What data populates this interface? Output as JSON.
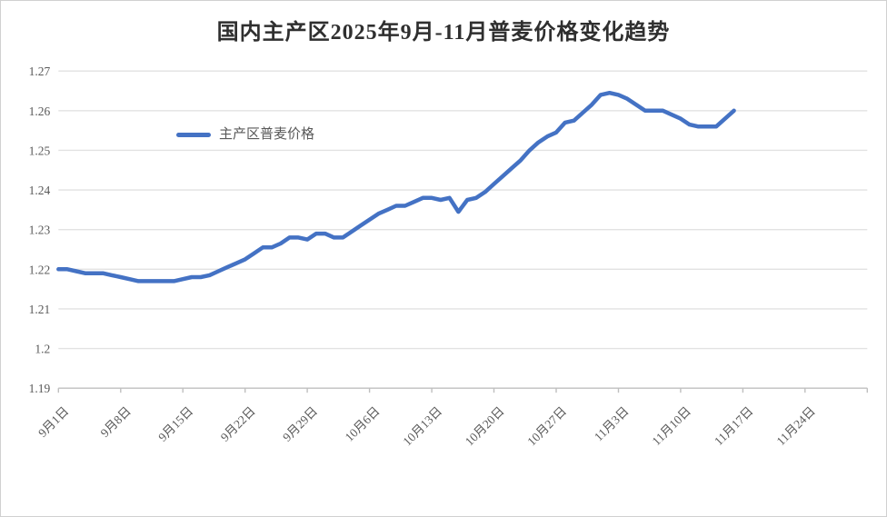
{
  "chart_data": {
    "type": "line",
    "title": "国内主产区2025年9月-11月普麦价格变化趋势",
    "xlabel": "",
    "ylabel": "",
    "ylim": [
      1.19,
      1.27
    ],
    "y_tick_labels": [
      "1.27",
      "1.26",
      "1.25",
      "1.24",
      "1.23",
      "1.22",
      "1.21",
      "1.2",
      "1.19"
    ],
    "x_tick_labels": [
      "9月1日",
      "9月8日",
      "9月15日",
      "9月22日",
      "9月29日",
      "10月6日",
      "10月13日",
      "10月20日",
      "10月27日",
      "11月3日",
      "11月10日",
      "11月17日",
      "11月24日"
    ],
    "x_axis_span_days": 91,
    "x_tick_interval_days": 7,
    "grid": "horizontal",
    "legend_position": "inside-top-left",
    "colors": {
      "line": "#4472C4",
      "gridline": "#e2e2e2",
      "axis": "#bfbfbf",
      "tick_label": "#595959",
      "title": "#2f2f2f"
    },
    "series": [
      {
        "name": "主产区普麦价格",
        "color": "#4472C4",
        "dates": [
          "9月1日",
          "9月2日",
          "9月3日",
          "9月4日",
          "9月5日",
          "9月6日",
          "9月7日",
          "9月8日",
          "9月9日",
          "9月10日",
          "9月11日",
          "9月12日",
          "9月13日",
          "9月14日",
          "9月15日",
          "9月16日",
          "9月17日",
          "9月18日",
          "9月19日",
          "9月20日",
          "9月21日",
          "9月22日",
          "9月23日",
          "9月24日",
          "9月25日",
          "9月26日",
          "9月27日",
          "9月28日",
          "9月29日",
          "9月30日",
          "10月1日",
          "10月2日",
          "10月3日",
          "10月4日",
          "10月5日",
          "10月6日",
          "10月7日",
          "10月8日",
          "10月9日",
          "10月10日",
          "10月11日",
          "10月12日",
          "10月13日",
          "10月14日",
          "10月15日",
          "10月16日",
          "10月17日",
          "10月18日",
          "10月19日",
          "10月20日",
          "10月21日",
          "10月22日",
          "10月23日",
          "10月24日",
          "10月25日",
          "10月26日",
          "10月27日",
          "10月28日",
          "10月29日",
          "10月30日",
          "10月31日",
          "11月1日",
          "11月2日",
          "11月3日",
          "11月4日",
          "11月5日",
          "11月6日",
          "11月7日",
          "11月8日",
          "11月9日",
          "11月10日",
          "11月11日",
          "11月12日",
          "11月13日",
          "11月14日",
          "11月15日",
          "11月16日"
        ],
        "values": [
          1.22,
          1.22,
          1.2195,
          1.219,
          1.219,
          1.219,
          1.2185,
          1.218,
          1.2175,
          1.217,
          1.217,
          1.217,
          1.217,
          1.217,
          1.2175,
          1.218,
          1.218,
          1.2185,
          1.2195,
          1.2205,
          1.2215,
          1.2225,
          1.224,
          1.2255,
          1.2255,
          1.2265,
          1.228,
          1.228,
          1.2275,
          1.229,
          1.229,
          1.228,
          1.228,
          1.2295,
          1.231,
          1.2325,
          1.234,
          1.235,
          1.236,
          1.236,
          1.237,
          1.238,
          1.238,
          1.2375,
          1.238,
          1.2345,
          1.2375,
          1.238,
          1.2395,
          1.2415,
          1.2435,
          1.2455,
          1.2475,
          1.25,
          1.252,
          1.2535,
          1.2545,
          1.257,
          1.2575,
          1.2595,
          1.2615,
          1.264,
          1.2645,
          1.264,
          1.263,
          1.2615,
          1.26,
          1.26,
          1.26,
          1.259,
          1.258,
          1.2565,
          1.256,
          1.256,
          1.256,
          1.258,
          1.26
        ]
      }
    ]
  }
}
